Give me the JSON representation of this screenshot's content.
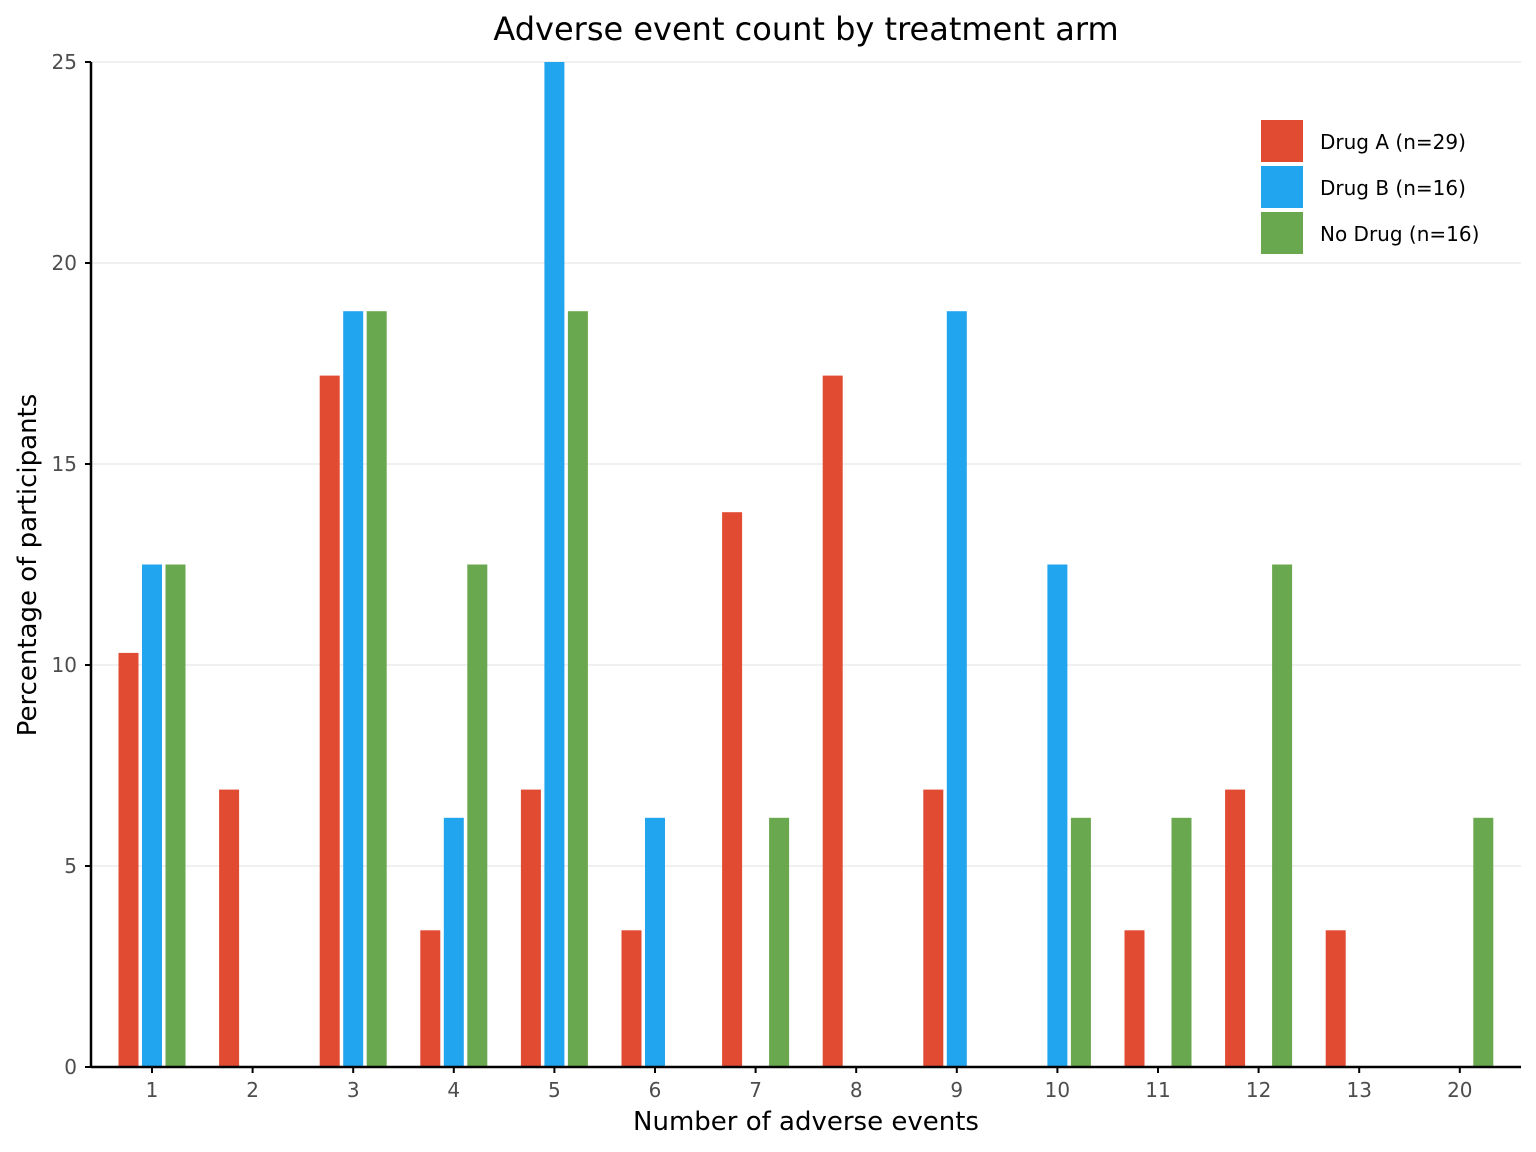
{
  "chart_data": {
    "type": "bar",
    "title": "Adverse event count by treatment arm",
    "xlabel": "Number of adverse events",
    "ylabel": "Percentage of participants",
    "categories": [
      "1",
      "2",
      "3",
      "4",
      "5",
      "6",
      "7",
      "8",
      "9",
      "10",
      "11",
      "12",
      "13",
      "20"
    ],
    "ylim": [
      0,
      25
    ],
    "yticks": [
      0,
      5,
      10,
      15,
      20,
      25
    ],
    "grid": "horizontal",
    "legend_position": "top-right",
    "series": [
      {
        "name": "Drug A (n=29)",
        "color": "#e04b32",
        "values": [
          10.3,
          6.9,
          17.2,
          3.4,
          6.9,
          3.4,
          13.8,
          17.2,
          6.9,
          0,
          3.4,
          6.9,
          3.4,
          0
        ]
      },
      {
        "name": "Drug B (n=16)",
        "color": "#22a5ef",
        "values": [
          12.5,
          0,
          18.8,
          6.2,
          25.0,
          6.2,
          0,
          0,
          18.8,
          12.5,
          0,
          0,
          0,
          0
        ]
      },
      {
        "name": "No Drug (n=16)",
        "color": "#6aa84f",
        "values": [
          12.5,
          0,
          18.8,
          12.5,
          18.8,
          0,
          6.2,
          0,
          0,
          6.2,
          6.2,
          12.5,
          0,
          6.2
        ]
      }
    ]
  }
}
